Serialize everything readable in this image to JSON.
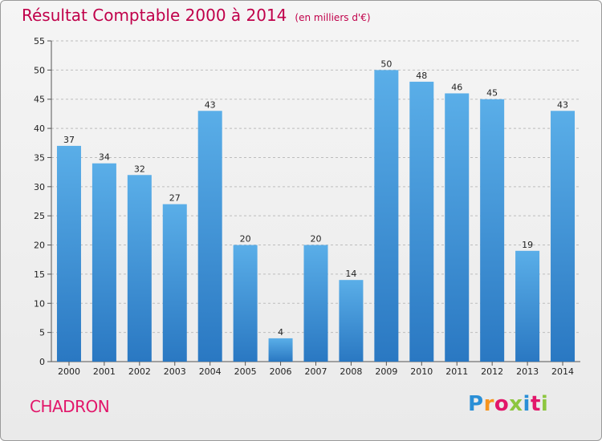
{
  "header": {
    "title": "Résultat Comptable 2000 à 2014",
    "subtitle": "(en milliers d'€)"
  },
  "footer": {
    "commune": "CHADRON",
    "logo_text": "Proxiti"
  },
  "colors": {
    "title": "#c0004a",
    "bar_top": "#5aaee8",
    "bar_bottom": "#2a78c2"
  },
  "chart_data": {
    "type": "bar",
    "title": "Résultat Comptable 2000 à 2014",
    "subtitle": "(en milliers d'€)",
    "xlabel": "",
    "ylabel": "",
    "categories": [
      "2000",
      "2001",
      "2002",
      "2003",
      "2004",
      "2005",
      "2006",
      "2007",
      "2008",
      "2009",
      "2010",
      "2011",
      "2012",
      "2013",
      "2014"
    ],
    "values": [
      37,
      34,
      32,
      27,
      43,
      20,
      4,
      20,
      14,
      50,
      48,
      46,
      45,
      19,
      43
    ],
    "ylim": [
      0,
      55
    ],
    "yticks": [
      0,
      5,
      10,
      15,
      20,
      25,
      30,
      35,
      40,
      45,
      50,
      55
    ],
    "grid": true,
    "data_labels": true,
    "legend": "none"
  }
}
